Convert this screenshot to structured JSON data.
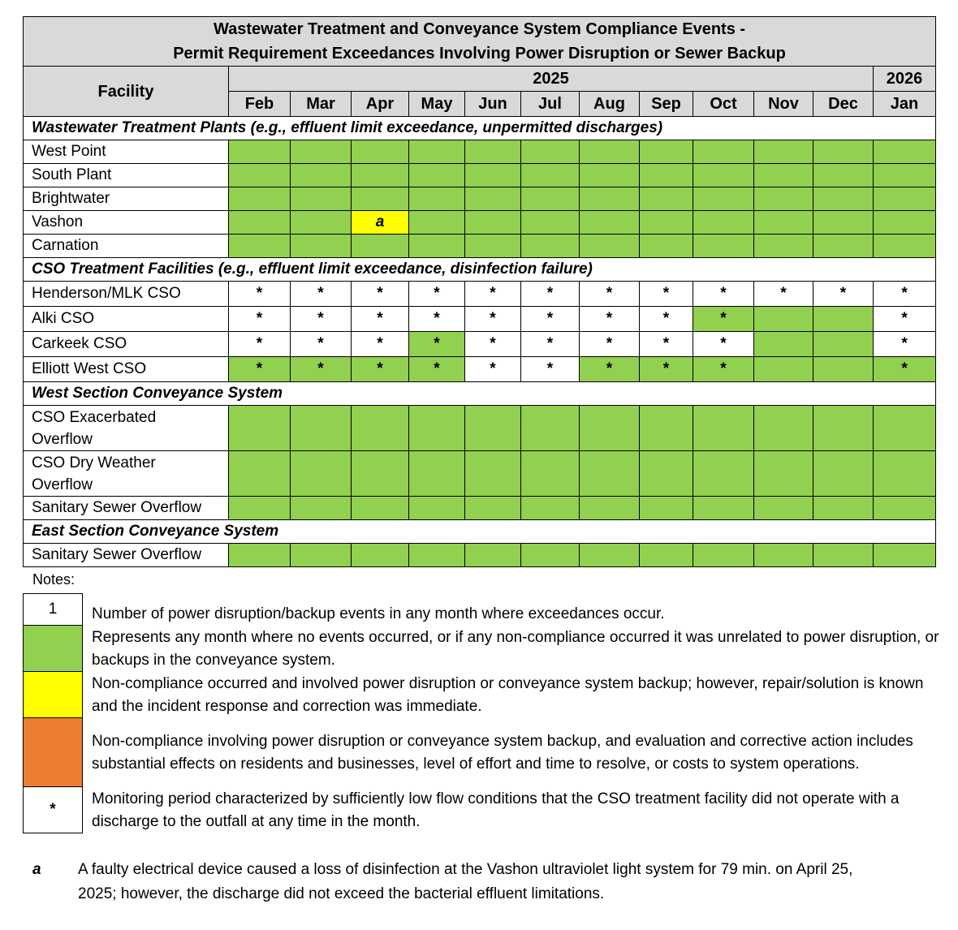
{
  "title": [
    "Wastewater Treatment and Conveyance System Compliance Events -",
    "Permit Requirement Exceedances Involving Power Disruption or Sewer Backup"
  ],
  "facility_header": "Facility",
  "years": [
    {
      "label": "2025",
      "span": 11
    },
    {
      "label": "2026",
      "span": 1
    }
  ],
  "months": [
    "Feb",
    "Mar",
    "Apr",
    "May",
    "Jun",
    "Jul",
    "Aug",
    "Sep",
    "Oct",
    "Nov",
    "Dec",
    "Jan"
  ],
  "colors": {
    "green": "#92D050",
    "yellow": "#FFFF00",
    "orange": "#ED7D31",
    "white": "#FFFFFF",
    "header": "#D9D9D9"
  },
  "sections": [
    {
      "label": "Wastewater Treatment Plants (e.g., effluent limit exceedance, unpermitted discharges)",
      "rows": [
        {
          "facility": "West Point",
          "fills": [
            "green",
            "green",
            "green",
            "green",
            "green",
            "green",
            "green",
            "green",
            "green",
            "green",
            "green",
            "green"
          ],
          "marks": [
            "",
            "",
            "",
            "",
            "",
            "",
            "",
            "",
            "",
            "",
            "",
            ""
          ]
        },
        {
          "facility": "South Plant",
          "fills": [
            "green",
            "green",
            "green",
            "green",
            "green",
            "green",
            "green",
            "green",
            "green",
            "green",
            "green",
            "green"
          ],
          "marks": [
            "",
            "",
            "",
            "",
            "",
            "",
            "",
            "",
            "",
            "",
            "",
            ""
          ]
        },
        {
          "facility": "Brightwater",
          "fills": [
            "green",
            "green",
            "green",
            "green",
            "green",
            "green",
            "green",
            "green",
            "green",
            "green",
            "green",
            "green"
          ],
          "marks": [
            "",
            "",
            "",
            "",
            "",
            "",
            "",
            "",
            "",
            "",
            "",
            ""
          ]
        },
        {
          "facility": "Vashon",
          "fills": [
            "green",
            "green",
            "yellow",
            "green",
            "green",
            "green",
            "green",
            "green",
            "green",
            "green",
            "green",
            "green"
          ],
          "marks": [
            "",
            "",
            "a",
            "",
            "",
            "",
            "",
            "",
            "",
            "",
            "",
            ""
          ]
        },
        {
          "facility": "Carnation",
          "fills": [
            "green",
            "green",
            "green",
            "green",
            "green",
            "green",
            "green",
            "green",
            "green",
            "green",
            "green",
            "green"
          ],
          "marks": [
            "",
            "",
            "",
            "",
            "",
            "",
            "",
            "",
            "",
            "",
            "",
            ""
          ]
        }
      ]
    },
    {
      "label": "CSO Treatment Facilities (e.g., effluent limit exceedance, disinfection failure)",
      "rows": [
        {
          "facility": "Henderson/MLK CSO",
          "fills": [
            "white",
            "white",
            "white",
            "white",
            "white",
            "white",
            "white",
            "white",
            "white",
            "white",
            "white",
            "white"
          ],
          "marks": [
            "*",
            "*",
            "*",
            "*",
            "*",
            "*",
            "*",
            "*",
            "*",
            "*",
            "*",
            "*"
          ]
        },
        {
          "facility": "Alki CSO",
          "fills": [
            "white",
            "white",
            "white",
            "white",
            "white",
            "white",
            "white",
            "white",
            "green",
            "green",
            "green",
            "white"
          ],
          "marks": [
            "*",
            "*",
            "*",
            "*",
            "*",
            "*",
            "*",
            "*",
            "*",
            "",
            "",
            "*"
          ]
        },
        {
          "facility": "Carkeek CSO",
          "fills": [
            "white",
            "white",
            "white",
            "green",
            "white",
            "white",
            "white",
            "white",
            "white",
            "green",
            "green",
            "white"
          ],
          "marks": [
            "*",
            "*",
            "*",
            "*",
            "*",
            "*",
            "*",
            "*",
            "*",
            "",
            "",
            "*"
          ]
        },
        {
          "facility": "Elliott West CSO",
          "fills": [
            "green",
            "green",
            "green",
            "green",
            "white",
            "white",
            "green",
            "green",
            "green",
            "green",
            "green",
            "green"
          ],
          "marks": [
            "*",
            "*",
            "*",
            "*",
            "*",
            "*",
            "*",
            "*",
            "*",
            "",
            "",
            "*"
          ]
        }
      ]
    },
    {
      "label": "West Section Conveyance System",
      "rows": [
        {
          "facility": "CSO Exacerbated Overflow",
          "tall": true,
          "fills": [
            "green",
            "green",
            "green",
            "green",
            "green",
            "green",
            "green",
            "green",
            "green",
            "green",
            "green",
            "green"
          ],
          "marks": [
            "",
            "",
            "",
            "",
            "",
            "",
            "",
            "",
            "",
            "",
            "",
            ""
          ]
        },
        {
          "facility": "CSO Dry Weather Overflow",
          "tall": true,
          "fills": [
            "green",
            "green",
            "green",
            "green",
            "green",
            "green",
            "green",
            "green",
            "green",
            "green",
            "green",
            "green"
          ],
          "marks": [
            "",
            "",
            "",
            "",
            "",
            "",
            "",
            "",
            "",
            "",
            "",
            ""
          ]
        },
        {
          "facility": "Sanitary Sewer Overflow",
          "fills": [
            "green",
            "green",
            "green",
            "green",
            "green",
            "green",
            "green",
            "green",
            "green",
            "green",
            "green",
            "green"
          ],
          "marks": [
            "",
            "",
            "",
            "",
            "",
            "",
            "",
            "",
            "",
            "",
            "",
            ""
          ]
        }
      ]
    },
    {
      "label": "East Section Conveyance System",
      "rows": [
        {
          "facility": "Sanitary Sewer Overflow",
          "fills": [
            "green",
            "green",
            "green",
            "green",
            "green",
            "green",
            "green",
            "green",
            "green",
            "green",
            "green",
            "green"
          ],
          "marks": [
            "",
            "",
            "",
            "",
            "",
            "",
            "",
            "",
            "",
            "",
            "",
            ""
          ]
        }
      ]
    }
  ],
  "notes_label": "Notes:",
  "legend": [
    {
      "symbol": "1",
      "fill": "white",
      "text": "Number of power disruption/backup events in any month where exceedances occur."
    },
    {
      "symbol": "",
      "fill": "green",
      "text": "Represents any month where no events occurred, or if any non-compliance occurred it was unrelated to power disruption, or backups in the conveyance system."
    },
    {
      "symbol": "",
      "fill": "yellow",
      "text": "Non-compliance occurred and involved power disruption or conveyance system backup; however, repair/solution is known and the incident response and correction was immediate."
    },
    {
      "symbol": "",
      "fill": "orange",
      "text": "Non-compliance involving power disruption or conveyance system backup, and evaluation and corrective action includes substantial effects on residents and businesses, level of effort and time to resolve, or costs to system operations."
    },
    {
      "symbol": "*",
      "fill": "white",
      "text": "Monitoring period characterized by sufficiently low flow conditions that the CSO treatment facility did not operate with a discharge to the outfall at any time in the month."
    }
  ],
  "footnote": {
    "marker": "a",
    "text": "A faulty electrical device caused a loss of disinfection at the Vashon ultraviolet light system for 79 min. on April 25, 2025; however, the discharge did not exceed the bacterial effluent limitations."
  }
}
